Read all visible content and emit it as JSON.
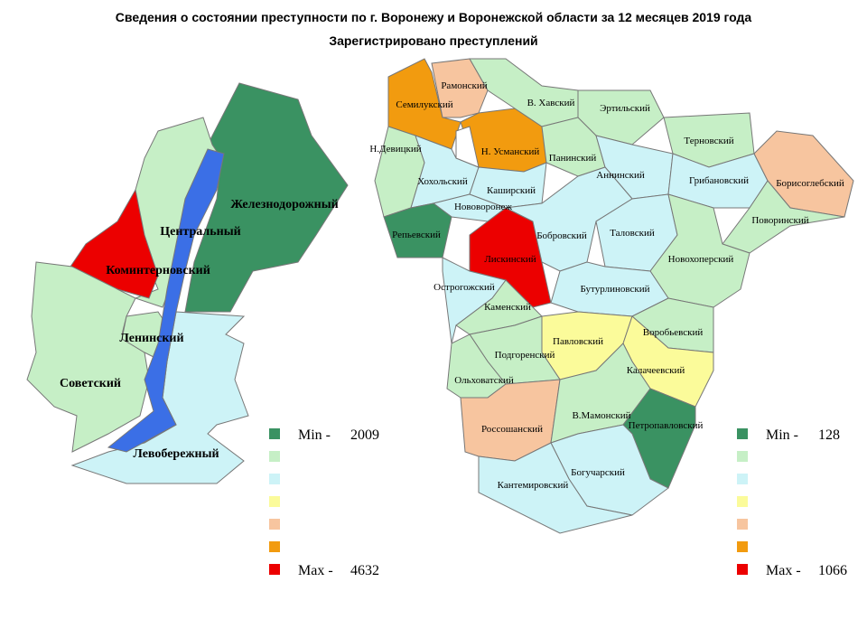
{
  "header": {
    "title": "Сведения о состоянии преступности по г. Воронежу и Воронежской области за 12 месяцев 2019 года",
    "subtitle": "Зарегистрировано преступлений"
  },
  "city_map": {
    "districts": [
      {
        "name": "Железнодорожный",
        "color": "#3a9262"
      },
      {
        "name": "Центральный",
        "color": "#c6efc6"
      },
      {
        "name": "Коминтерновский",
        "color": "#ec0000"
      },
      {
        "name": "Советский",
        "color": "#c6efc6"
      },
      {
        "name": "Ленинский",
        "color": "#c6efc6"
      },
      {
        "name": "Левобережный",
        "color": "#cdf3f7"
      }
    ],
    "legend": {
      "min_label": "Min -",
      "min_value": 2009,
      "max_label": "Max -",
      "max_value": 4632,
      "colors": [
        "#3a9262",
        "#c6efc6",
        "#cdf3f7",
        "#fbfb9a",
        "#f7c59f",
        "#f29b0f",
        "#ec0000"
      ]
    }
  },
  "region_map": {
    "districts": [
      {
        "name": "Семилукский",
        "color": "#f29b0f"
      },
      {
        "name": "Рамонский",
        "color": "#f7c59f"
      },
      {
        "name": "Н. Усманский",
        "color": "#f29b0f"
      },
      {
        "name": "В. Хавский",
        "color": "#c6efc6"
      },
      {
        "name": "Эртильский",
        "color": "#c6efc6"
      },
      {
        "name": "Н.Девицкий",
        "color": "#c6efc6"
      },
      {
        "name": "Панинский",
        "color": "#c6efc6"
      },
      {
        "name": "Терновский",
        "color": "#c6efc6"
      },
      {
        "name": "Аннинский",
        "color": "#cdf3f7"
      },
      {
        "name": "Хохольский",
        "color": "#cdf3f7"
      },
      {
        "name": "Каширский",
        "color": "#cdf3f7"
      },
      {
        "name": "Грибановский",
        "color": "#cdf3f7"
      },
      {
        "name": "Борисоглебский",
        "color": "#f7c59f"
      },
      {
        "name": "Поворинский",
        "color": "#c6efc6"
      },
      {
        "name": "Нововоронеж",
        "color": "#cdf3f7"
      },
      {
        "name": "Репьевский",
        "color": "#3a9262"
      },
      {
        "name": "Лискинский",
        "color": "#ec0000"
      },
      {
        "name": "Бобровский",
        "color": "#cdf3f7"
      },
      {
        "name": "Таловский",
        "color": "#cdf3f7"
      },
      {
        "name": "Новохоперский",
        "color": "#c6efc6"
      },
      {
        "name": "Острогожский",
        "color": "#cdf3f7"
      },
      {
        "name": "Бутурлиновский",
        "color": "#cdf3f7"
      },
      {
        "name": "Каменский",
        "color": "#c6efc6"
      },
      {
        "name": "Воробьевский",
        "color": "#c6efc6"
      },
      {
        "name": "Павловский",
        "color": "#fbfb9a"
      },
      {
        "name": "Подгоренский",
        "color": "#c6efc6"
      },
      {
        "name": "Калачеевский",
        "color": "#fbfb9a"
      },
      {
        "name": "Ольховатский",
        "color": "#c6efc6"
      },
      {
        "name": "Россошанский",
        "color": "#f7c59f"
      },
      {
        "name": "В.Мамонский",
        "color": "#c6efc6"
      },
      {
        "name": "Петропавловский",
        "color": "#3a9262"
      },
      {
        "name": "Богучарский",
        "color": "#cdf3f7"
      },
      {
        "name": "Кантемировский",
        "color": "#cdf3f7"
      }
    ],
    "legend": {
      "min_label": "Min -",
      "min_value": 128,
      "max_label": "Max -",
      "max_value": 1066,
      "colors": [
        "#3a9262",
        "#c6efc6",
        "#cdf3f7",
        "#fbfb9a",
        "#f7c59f",
        "#f29b0f",
        "#ec0000"
      ]
    }
  }
}
